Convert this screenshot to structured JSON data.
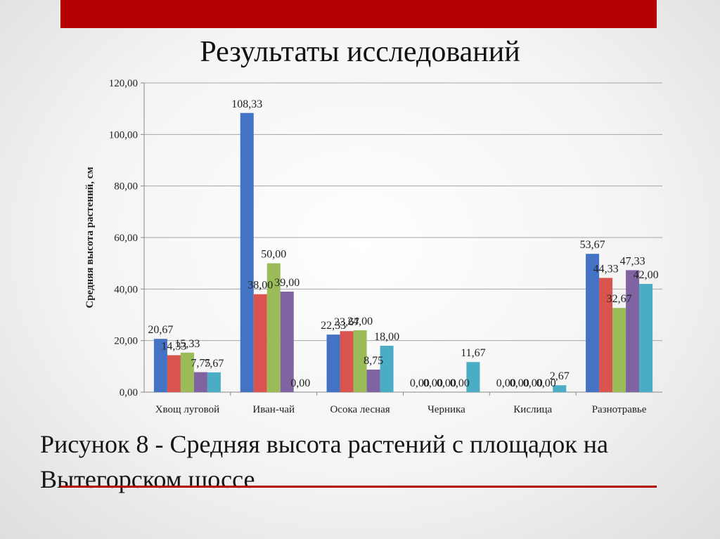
{
  "slide": {
    "title": "Результаты исследований",
    "caption": "Рисунок 8 - Средняя высота растений с площадок на Вытегорском шоссе",
    "accent_color": "#b30000"
  },
  "chart_data": {
    "type": "bar",
    "ylabel": "Средняя высота растений, см",
    "ylim": [
      0,
      120
    ],
    "yticks": [
      "0,00",
      "20,00",
      "40,00",
      "60,00",
      "80,00",
      "100,00",
      "120,00"
    ],
    "grid": true,
    "categories": [
      "Хвощ луговой",
      "Иван-чай",
      "Осока лесная",
      "Черника",
      "Кислица",
      "Разнотравье"
    ],
    "series": [
      {
        "color": "#4472c4",
        "values": [
          20.67,
          108.33,
          22.33,
          0,
          0,
          53.67
        ],
        "labels": [
          "20,67",
          "108,33",
          "22,33",
          "0,00",
          "0,00",
          "53,67"
        ]
      },
      {
        "color": "#d9534f",
        "values": [
          14.33,
          38.0,
          23.67,
          0,
          0,
          44.33
        ],
        "labels": [
          "14,33",
          "38,00",
          "23,67",
          "0,00",
          "0,00",
          "44,33"
        ]
      },
      {
        "color": "#9bbb59",
        "values": [
          15.33,
          50.0,
          24.0,
          0,
          0,
          32.67
        ],
        "labels": [
          "15,33",
          "50,00",
          "24,00",
          "0,00",
          "0,00",
          "32,67"
        ]
      },
      {
        "color": "#8064a2",
        "values": [
          7.75,
          39.0,
          8.75,
          0,
          0,
          47.33
        ],
        "labels": [
          "7,75",
          "39,00",
          "8,75",
          "0,00",
          "0,00",
          "47,33"
        ]
      },
      {
        "color": "#4bacc6",
        "values": [
          7.67,
          0,
          18.0,
          11.67,
          2.67,
          42.0
        ],
        "labels": [
          "7,67",
          "0,00",
          "18,00",
          "11,67",
          "2,67",
          "42,00"
        ]
      }
    ]
  }
}
